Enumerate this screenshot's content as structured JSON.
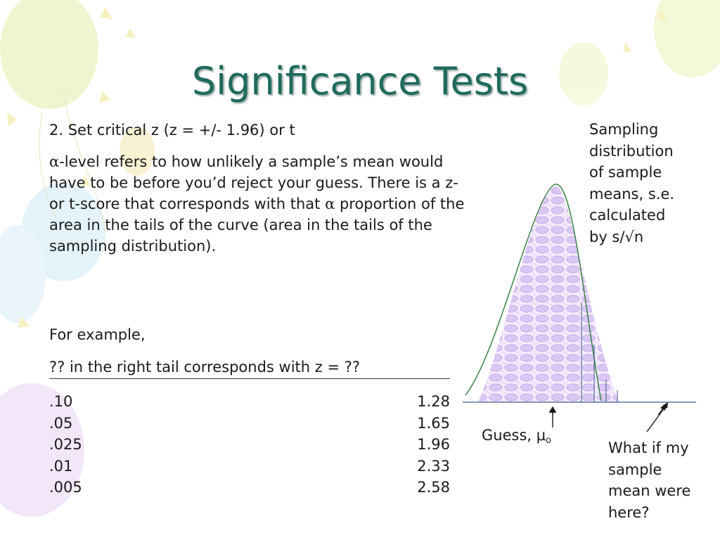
{
  "title": "Significance Tests",
  "intro_line": "2. Set critical z (z = +/- 1.96) or t",
  "paragraph": {
    "alpha_symbol": "α",
    "part1": "-level refers to how unlikely a sample’s mean would have to be before you’d reject your guess.  There is a z- or t-score that corresponds with that ",
    "part2": " proportion of the area in the tails of the curve (area in the tails of the sampling distribution)."
  },
  "example_label": "For example,",
  "table": {
    "header": "?? in the right tail corresponds with z = ??",
    "rows": [
      {
        "tail": ".10",
        "z": "1.28"
      },
      {
        "tail": ".05",
        "z": "1.65"
      },
      {
        "tail": ".025",
        "z": "1.96"
      },
      {
        "tail": ".01",
        "z": "2.33"
      },
      {
        "tail": ".005",
        "z": "2.58"
      }
    ]
  },
  "figure": {
    "sampling_lines": [
      "Sampling",
      "distribution",
      "of sample",
      "means, s.e.",
      "calculated",
      "by s/√n"
    ],
    "guess_label": "Guess, μ",
    "guess_subscript": "o",
    "question_lines": [
      "What if my",
      "sample",
      "mean were",
      "here?"
    ]
  },
  "colors": {
    "title": "#1f6b5e",
    "curve": "#2e7d3a",
    "fill_pattern": "#c9a6ee"
  }
}
